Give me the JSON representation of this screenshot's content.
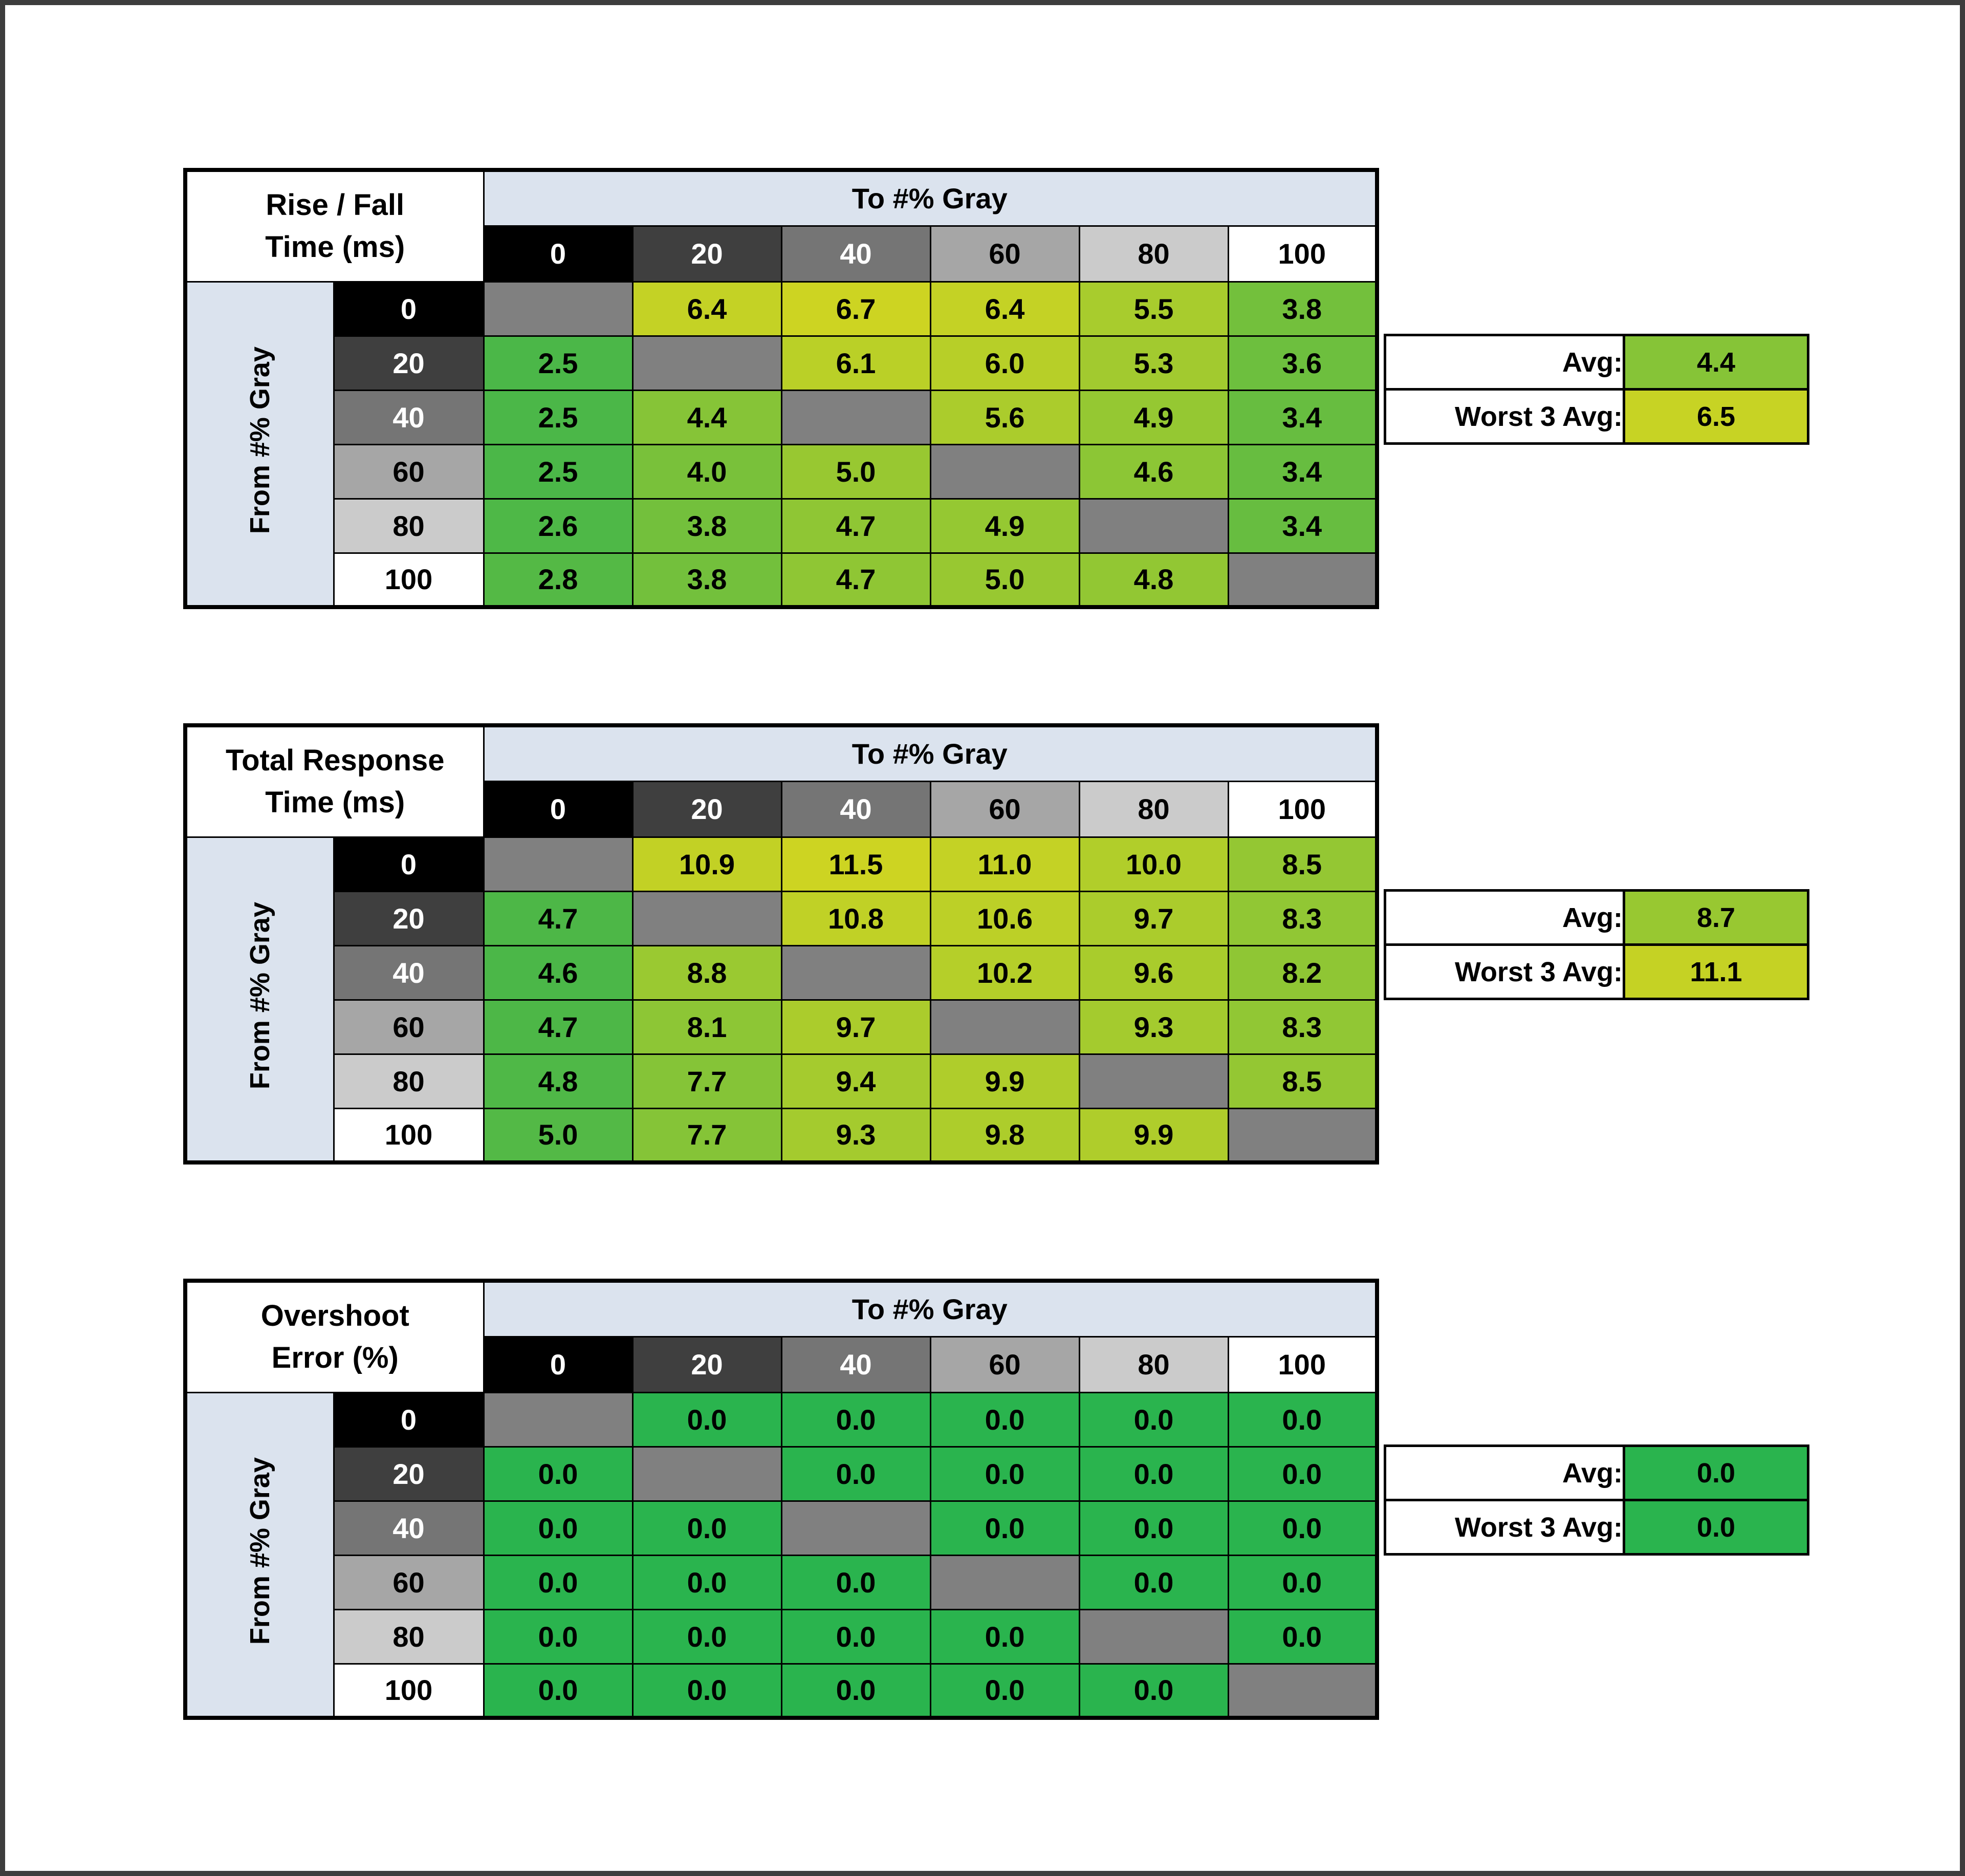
{
  "colors": {
    "page_background": "#ffffff",
    "page_border": "#3d3d3d",
    "grid_border": "#000000",
    "panel_header_fill": "#dbe3ee",
    "diagonal_fill": "#808080",
    "scale_green": "#4bb748",
    "scale_yellow": "#cdd422",
    "pure_green": "#2ab44e",
    "gray_fills": [
      "#000000",
      "#3f3f3f",
      "#757575",
      "#a6a6a6",
      "#cbcbcb",
      "#ffffff"
    ],
    "gray_text": [
      "#ffffff",
      "#ffffff",
      "#ffffff",
      "#000000",
      "#000000",
      "#000000"
    ]
  },
  "chart_data": [
    {
      "type": "heatmap",
      "title": [
        "Rise / Fall",
        "Time (ms)"
      ],
      "x_label": "To #% Gray",
      "y_label": "From #% Gray",
      "x_ticks": [
        0,
        20,
        40,
        60,
        80,
        100
      ],
      "y_ticks": [
        0,
        20,
        40,
        60,
        80,
        100
      ],
      "values": [
        [
          null,
          6.4,
          6.7,
          6.4,
          5.5,
          3.8
        ],
        [
          2.5,
          null,
          6.1,
          6.0,
          5.3,
          3.6
        ],
        [
          2.5,
          4.4,
          null,
          5.6,
          4.9,
          3.4
        ],
        [
          2.5,
          4.0,
          5.0,
          null,
          4.6,
          3.4
        ],
        [
          2.6,
          3.8,
          4.7,
          4.9,
          null,
          3.4
        ],
        [
          2.8,
          3.8,
          4.7,
          5.0,
          4.8,
          null
        ]
      ],
      "stats": {
        "avg_label": "Avg:",
        "avg": 4.4,
        "worst_label": "Worst 3 Avg:",
        "worst3_avg": 6.5
      },
      "scale": {
        "min": 2.5,
        "max": 6.7
      }
    },
    {
      "type": "heatmap",
      "title": [
        "Total Response",
        "Time (ms)"
      ],
      "x_label": "To #% Gray",
      "y_label": "From #% Gray",
      "x_ticks": [
        0,
        20,
        40,
        60,
        80,
        100
      ],
      "y_ticks": [
        0,
        20,
        40,
        60,
        80,
        100
      ],
      "values": [
        [
          null,
          10.9,
          11.5,
          11.0,
          10.0,
          8.5
        ],
        [
          4.7,
          null,
          10.8,
          10.6,
          9.7,
          8.3
        ],
        [
          4.6,
          8.8,
          null,
          10.2,
          9.6,
          8.2
        ],
        [
          4.7,
          8.1,
          9.7,
          null,
          9.3,
          8.3
        ],
        [
          4.8,
          7.7,
          9.4,
          9.9,
          null,
          8.5
        ],
        [
          5.0,
          7.7,
          9.3,
          9.8,
          9.9,
          null
        ]
      ],
      "stats": {
        "avg_label": "Avg:",
        "avg": 8.7,
        "worst_label": "Worst 3 Avg:",
        "worst3_avg": 11.1
      },
      "scale": {
        "min": 4.6,
        "max": 11.5
      }
    },
    {
      "type": "heatmap",
      "title": [
        "Overshoot",
        "Error (%)"
      ],
      "x_label": "To #% Gray",
      "y_label": "From #% Gray",
      "x_ticks": [
        0,
        20,
        40,
        60,
        80,
        100
      ],
      "y_ticks": [
        0,
        20,
        40,
        60,
        80,
        100
      ],
      "values": [
        [
          null,
          0.0,
          0.0,
          0.0,
          0.0,
          0.0
        ],
        [
          0.0,
          null,
          0.0,
          0.0,
          0.0,
          0.0
        ],
        [
          0.0,
          0.0,
          null,
          0.0,
          0.0,
          0.0
        ],
        [
          0.0,
          0.0,
          0.0,
          null,
          0.0,
          0.0
        ],
        [
          0.0,
          0.0,
          0.0,
          0.0,
          null,
          0.0
        ],
        [
          0.0,
          0.0,
          0.0,
          0.0,
          0.0,
          null
        ]
      ],
      "stats": {
        "avg_label": "Avg:",
        "avg": 0.0,
        "worst_label": "Worst 3 Avg:",
        "worst3_avg": 0.0
      },
      "scale": {
        "min": 0.0,
        "max": 0.0
      }
    }
  ]
}
